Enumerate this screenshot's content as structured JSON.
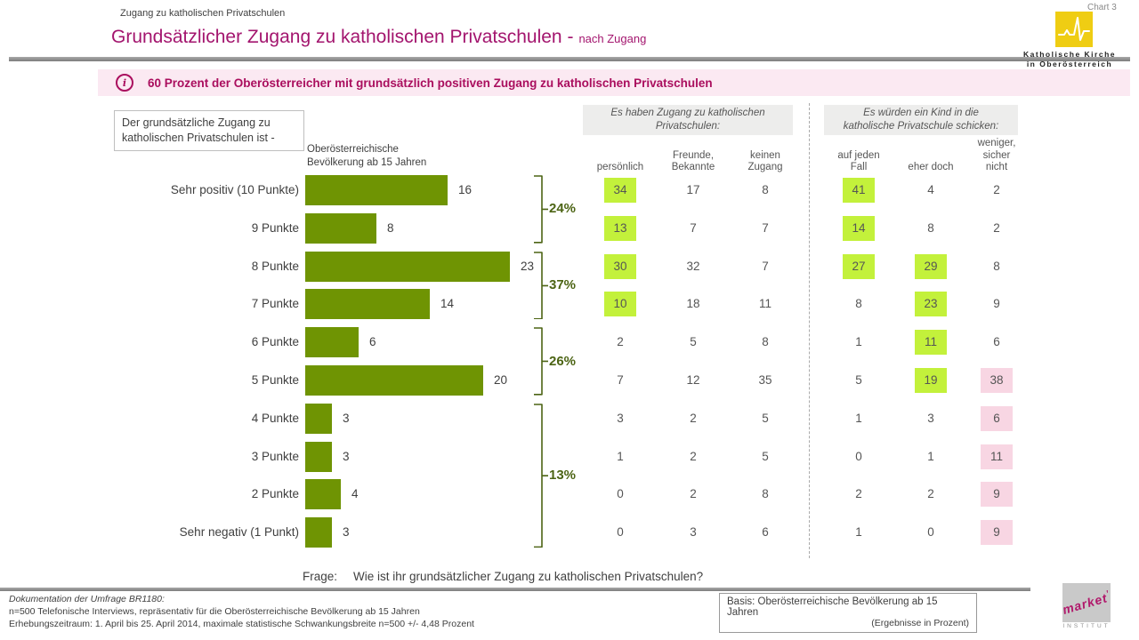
{
  "header": {
    "eyebrow": "Zugang zu katholischen Privatschulen",
    "title": "Grundsätzlicher Zugang zu katholischen Privatschulen -",
    "subtitle": "nach Zugang",
    "chart_label": "Chart 3",
    "logo": {
      "icon": "pulse-line-icon",
      "org": "Katholische Kirche\nin Oberösterreich"
    }
  },
  "banner": {
    "icon_glyph": "i",
    "text": "60 Prozent der Oberösterreicher mit grundsätzlich positiven Zugang zu katholischen Privatschulen"
  },
  "chart_data": {
    "type": "bar",
    "orientation": "horizontal",
    "title": "Grundsätzlicher Zugang zu katholischen Privatschulen - nach Zugang",
    "note_box": "Der grundsätzliche Zugang zu\nkatholischen Privatschulen ist -",
    "series_label": "Oberösterreichische\nBevölkerung ab 15 Jahren",
    "unit": "Prozent",
    "xlim": [
      0,
      25
    ],
    "categories": [
      "Sehr positiv (10 Punkte)",
      "9 Punkte",
      "8 Punkte",
      "7 Punkte",
      "6 Punkte",
      "5 Punkte",
      "4 Punkte",
      "3 Punkte",
      "2 Punkte",
      "Sehr negativ (1 Punkt)"
    ],
    "values": [
      16,
      8,
      23,
      14,
      6,
      20,
      3,
      3,
      4,
      3
    ],
    "summary_brackets": [
      {
        "label": "24%",
        "from_row": 0,
        "to_row": 1
      },
      {
        "label": "37%",
        "from_row": 2,
        "to_row": 3
      },
      {
        "label": "26%",
        "from_row": 4,
        "to_row": 5
      },
      {
        "label": "13%",
        "from_row": 6,
        "to_row": 9
      }
    ],
    "cross_table": {
      "groups": [
        {
          "title": "Es haben Zugang zu katholischen\nPrivatschulen:",
          "columns": [
            "persönlich",
            "Freunde,\nBekannte",
            "keinen\nZugang"
          ]
        },
        {
          "title": "Es würden ein Kind in die\nkatholische Privatschule schicken:",
          "columns": [
            "auf jeden\nFall",
            "eher doch",
            "weniger,\nsicher\nnicht"
          ]
        }
      ],
      "rows": [
        {
          "values": [
            34,
            17,
            8,
            41,
            4,
            2
          ],
          "highlight": [
            "green",
            null,
            null,
            "green",
            null,
            null
          ]
        },
        {
          "values": [
            13,
            7,
            7,
            14,
            8,
            2
          ],
          "highlight": [
            "green",
            null,
            null,
            "green",
            null,
            null
          ]
        },
        {
          "values": [
            30,
            32,
            7,
            27,
            29,
            8
          ],
          "highlight": [
            "green",
            null,
            null,
            "green",
            "green",
            null
          ]
        },
        {
          "values": [
            10,
            18,
            11,
            8,
            23,
            9
          ],
          "highlight": [
            "green",
            null,
            null,
            null,
            "green",
            null
          ]
        },
        {
          "values": [
            2,
            5,
            8,
            1,
            11,
            6
          ],
          "highlight": [
            null,
            null,
            null,
            null,
            "green",
            null
          ]
        },
        {
          "values": [
            7,
            12,
            35,
            5,
            19,
            38
          ],
          "highlight": [
            null,
            null,
            null,
            null,
            "green",
            "pink"
          ]
        },
        {
          "values": [
            3,
            2,
            5,
            1,
            3,
            6
          ],
          "highlight": [
            null,
            null,
            null,
            null,
            null,
            "pink"
          ]
        },
        {
          "values": [
            1,
            2,
            5,
            0,
            1,
            11
          ],
          "highlight": [
            null,
            null,
            null,
            null,
            null,
            "pink"
          ]
        },
        {
          "values": [
            0,
            2,
            8,
            2,
            2,
            9
          ],
          "highlight": [
            null,
            null,
            null,
            null,
            null,
            "pink"
          ]
        },
        {
          "values": [
            0,
            3,
            6,
            1,
            0,
            9
          ],
          "highlight": [
            null,
            null,
            null,
            null,
            null,
            "pink"
          ]
        }
      ]
    }
  },
  "question": {
    "label": "Frage:",
    "text": "Wie ist ihr grundsätzlicher Zugang zu katholischen Privatschulen?"
  },
  "footer": {
    "doc_line1": "Dokumentation der Umfrage BR1180:",
    "doc_line2": "n=500 Telefonische Interviews, repräsentativ für die Oberösterreichische Bevölkerung ab 15 Jahren",
    "doc_line3": "Erhebungszeitraum: 1. April bis 25. April 2014, maximale statistische Schwankungsbreite n=500 +/- 4,48 Prozent",
    "basis_line1": "Basis: Oberösterreichische Bevölkerung ab 15 Jahren",
    "basis_line2": "(Ergebnisse in Prozent)",
    "market_logo": {
      "name": "market",
      "sub": "INSTITUT"
    }
  },
  "colors": {
    "accent": "#A3156E",
    "banner_bg": "#FBE9F2",
    "banner_text": "#AA0E5E",
    "bar": "#6F9403",
    "bracket": "#4C6414",
    "hl_green": "#C3F13B",
    "hl_pink": "#F8D6E3",
    "kk_yellow": "#EFCD13",
    "market": "#B1186B"
  }
}
